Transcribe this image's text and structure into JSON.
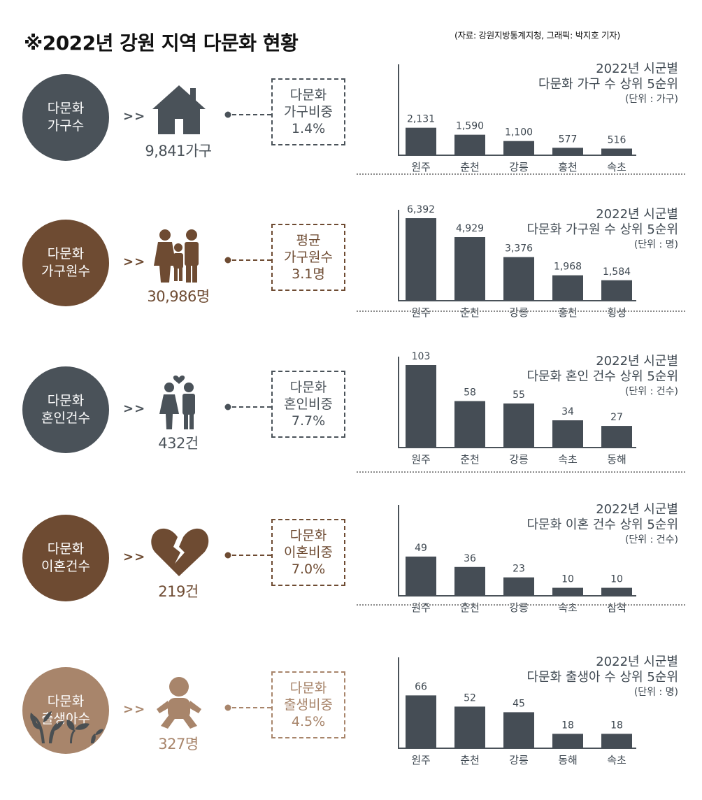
{
  "header": {
    "title": "※2022년 강원 지역 다문화 현황",
    "source": "(자료: 강원지방통계지청, 그래픽: 박지호 기자)"
  },
  "colors": {
    "slate": "#4a5259",
    "brown": "#6e4b32",
    "tan": "#a8856b",
    "bar": "#454d55",
    "text": "#3d4750"
  },
  "rows": [
    {
      "circle": [
        "다문화",
        "가구수"
      ],
      "arrow": ">>",
      "icon": "house-icon",
      "total": "9,841가구",
      "ratio": [
        "다문화",
        "가구비중",
        "1.4%"
      ],
      "theme": "#4a5259"
    },
    {
      "circle": [
        "다문화",
        "가구원수"
      ],
      "arrow": ">>",
      "icon": "family-icon",
      "total": "30,986명",
      "ratio": [
        "평균",
        "가구원수",
        "3.1명"
      ],
      "theme": "#6e4b32"
    },
    {
      "circle": [
        "다문화",
        "혼인건수"
      ],
      "arrow": ">>",
      "icon": "couple-icon",
      "total": "432건",
      "ratio": [
        "다문화",
        "혼인비중",
        "7.7%"
      ],
      "theme": "#4a5259"
    },
    {
      "circle": [
        "다문화",
        "이혼건수"
      ],
      "arrow": ">>",
      "icon": "broken-heart-icon",
      "total": "219건",
      "ratio": [
        "다문화",
        "이혼비중",
        "7.0%"
      ],
      "theme": "#6e4b32"
    },
    {
      "circle": [
        "다문화",
        "출생아수"
      ],
      "arrow": ">>",
      "icon": "baby-icon",
      "total": "327명",
      "ratio": [
        "다문화",
        "출생비중",
        "4.5%"
      ],
      "theme": "#a8856b"
    }
  ],
  "chart_data": [
    {
      "type": "bar",
      "title": [
        "2022년 시군별",
        "다문화 가구 수 상위 5순위"
      ],
      "unit": "(단위 : 가구)",
      "categories": [
        "원주",
        "춘천",
        "강릉",
        "홍천",
        "속초"
      ],
      "values": [
        2131,
        1590,
        1100,
        577,
        516
      ],
      "labels": [
        "2,131",
        "1,590",
        "1,100",
        "577",
        "516"
      ],
      "ylim": [
        0,
        6392
      ]
    },
    {
      "type": "bar",
      "title": [
        "2022년 시군별",
        "다문화 가구원 수 상위 5순위"
      ],
      "unit": "(단위 : 명)",
      "categories": [
        "원주",
        "춘천",
        "강릉",
        "홍천",
        "횡성"
      ],
      "values": [
        6392,
        4929,
        3376,
        1968,
        1584
      ],
      "labels": [
        "6,392",
        "4,929",
        "3,376",
        "1,968",
        "1,584"
      ],
      "ylim": [
        0,
        6392
      ]
    },
    {
      "type": "bar",
      "title": [
        "2022년 시군별",
        "다문화 혼인 건수 상위 5순위"
      ],
      "unit": "(단위 : 건수)",
      "categories": [
        "원주",
        "춘천",
        "강릉",
        "속초",
        "동해"
      ],
      "values": [
        103,
        58,
        55,
        34,
        27
      ],
      "labels": [
        "103",
        "58",
        "55",
        "34",
        "27"
      ],
      "ylim": [
        0,
        103
      ]
    },
    {
      "type": "bar",
      "title": [
        "2022년 시군별",
        "다문화 이혼 건수 상위 5순위"
      ],
      "unit": "(단위 : 건수)",
      "categories": [
        "원주",
        "춘천",
        "강릉",
        "속초",
        "삼척"
      ],
      "values": [
        49,
        36,
        23,
        10,
        10
      ],
      "labels": [
        "49",
        "36",
        "23",
        "10",
        "10"
      ],
      "ylim": [
        0,
        103
      ]
    },
    {
      "type": "bar",
      "title": [
        "2022년 시군별",
        "다문화 출생아 수 상위 5순위"
      ],
      "unit": "(단위 : 명)",
      "categories": [
        "원주",
        "춘천",
        "강릉",
        "동해",
        "속초"
      ],
      "values": [
        66,
        52,
        45,
        18,
        18
      ],
      "labels": [
        "66",
        "52",
        "45",
        "18",
        "18"
      ],
      "ylim": [
        0,
        103
      ]
    }
  ]
}
